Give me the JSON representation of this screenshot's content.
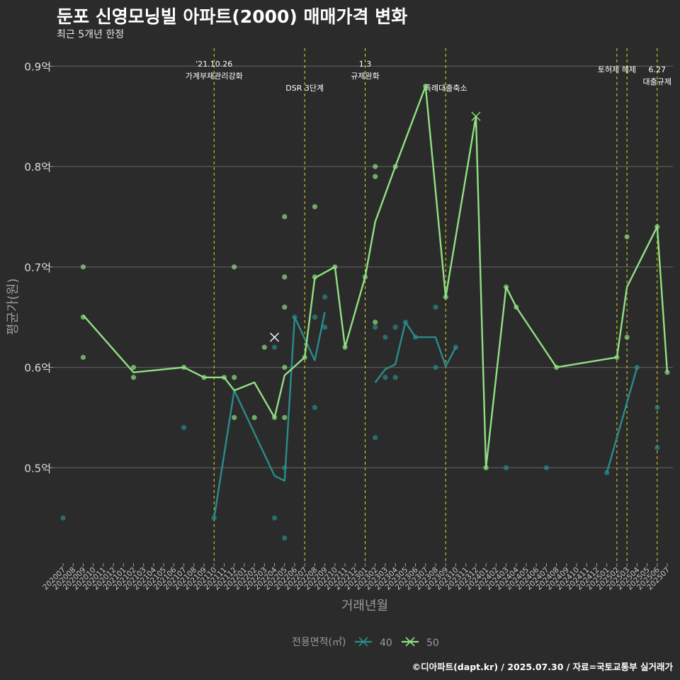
{
  "title": "둔포 신영모닝빌 아파트(2000) 매매가격 변화",
  "subtitle": "최근 5개년 한정",
  "caption": "©디아파트(dapt.kr) / 2025.07.30 / 자료=국토교통부 실거래가",
  "colors": {
    "background": "#2b2b2b",
    "grid": "#5a5a5a",
    "event_line": "#e0e020",
    "series_40": "#2a8c8a",
    "series_50": "#90e082",
    "axis_text": "#9a9a9a"
  },
  "chart_data": {
    "type": "line",
    "xlabel": "거래년월",
    "ylabel": "평균가(원)",
    "y_ticks": [
      0.5,
      0.6,
      0.7,
      0.8,
      0.9
    ],
    "y_tick_labels": [
      "0.5억",
      "0.6억",
      "0.7억",
      "0.8억",
      "0.9억"
    ],
    "ylim": [
      0.405,
      0.92
    ],
    "x_categories": [
      "202007",
      "202008",
      "202009",
      "202010",
      "202011",
      "202012",
      "202101",
      "202102",
      "202103",
      "202104",
      "202105",
      "202106",
      "202107",
      "202108",
      "202109",
      "202110",
      "202111",
      "202112",
      "202201",
      "202202",
      "202203",
      "202204",
      "202205",
      "202206",
      "202207",
      "202208",
      "202209",
      "202210",
      "202211",
      "202212",
      "202301",
      "202302",
      "202303",
      "202304",
      "202305",
      "202306",
      "202307",
      "202308",
      "202309",
      "202310",
      "202311",
      "202312",
      "202401",
      "202402",
      "202403",
      "202404",
      "202405",
      "202406",
      "202407",
      "202408",
      "202409",
      "202410",
      "202411",
      "202412",
      "202501",
      "202502",
      "202503",
      "202504",
      "202505",
      "202506",
      "202507"
    ],
    "legend": {
      "title": "전용면적(㎡)",
      "position": "bottom",
      "items": [
        {
          "label": "40",
          "series": "40"
        },
        {
          "label": "50",
          "series": "50"
        }
      ]
    },
    "events": [
      {
        "x": "202110",
        "label_lines": [
          "'21.10.26",
          "가계부채관리강화"
        ],
        "row": 0
      },
      {
        "x": "202207",
        "label_lines": [
          "DSR 3단계"
        ],
        "row": 2
      },
      {
        "x": "202301",
        "label_lines": [
          "1.3",
          "규제완화"
        ],
        "row": 0
      },
      {
        "x": "202309",
        "label_lines": [
          "특례대출축소"
        ],
        "row": 2
      },
      {
        "x": "202502",
        "label_lines": [
          "토허제 해제"
        ],
        "row": 1
      },
      {
        "x": "202503",
        "label_lines": [],
        "row": 1
      },
      {
        "x": "202506",
        "label_lines": [
          "6.27",
          "대출규제"
        ],
        "row": 1
      }
    ],
    "series": [
      {
        "name": "40",
        "line": [
          [
            "202110",
            0.45
          ],
          [
            "202112",
            0.577
          ],
          [
            "202204",
            0.492
          ],
          [
            "202205",
            0.487
          ],
          [
            "202206",
            0.65
          ],
          [
            "202208",
            0.607
          ],
          [
            "202209",
            0.655
          ],
          null,
          [
            "202302",
            0.585
          ],
          [
            "202303",
            0.598
          ],
          [
            "202304",
            0.603
          ],
          [
            "202305",
            0.645
          ],
          [
            "202306",
            0.63
          ],
          [
            "202307",
            0.63
          ],
          [
            "202308",
            0.63
          ],
          [
            "202309",
            0.601
          ],
          [
            "202310",
            0.62
          ],
          null,
          [
            "202501",
            0.495
          ],
          [
            "202504",
            0.6
          ]
        ],
        "points": [
          [
            "202007",
            0.45
          ],
          [
            "202107",
            0.54
          ],
          [
            "202110",
            0.45
          ],
          [
            "202204",
            0.62
          ],
          [
            "202204",
            0.45
          ],
          [
            "202205",
            0.5
          ],
          [
            "202205",
            0.43
          ],
          [
            "202206",
            0.65
          ],
          [
            "202208",
            0.56
          ],
          [
            "202208",
            0.65
          ],
          [
            "202209",
            0.64
          ],
          [
            "202209",
            0.67
          ],
          [
            "202302",
            0.53
          ],
          [
            "202302",
            0.64
          ],
          [
            "202303",
            0.59
          ],
          [
            "202303",
            0.63
          ],
          [
            "202304",
            0.59
          ],
          [
            "202304",
            0.64
          ],
          [
            "202305",
            0.645
          ],
          [
            "202306",
            0.63
          ],
          [
            "202308",
            0.66
          ],
          [
            "202308",
            0.6
          ],
          [
            "202310",
            0.62
          ],
          [
            "202403",
            0.5
          ],
          [
            "202407",
            0.5
          ],
          [
            "202501",
            0.495
          ],
          [
            "202504",
            0.6
          ],
          [
            "202506",
            0.56
          ],
          [
            "202506",
            0.52
          ]
        ],
        "x_marks": [
          [
            "202204",
            0.63
          ]
        ]
      },
      {
        "name": "50",
        "line": [
          [
            "202009",
            0.652
          ],
          [
            "202102",
            0.595
          ],
          [
            "202107",
            0.6
          ],
          [
            "202109",
            0.59
          ],
          [
            "202111",
            0.59
          ],
          [
            "202112",
            0.577
          ],
          [
            "202202",
            0.585
          ],
          [
            "202204",
            0.55
          ],
          [
            "202205",
            0.592
          ],
          [
            "202207",
            0.61
          ],
          [
            "202208",
            0.689
          ],
          [
            "202210",
            0.7
          ],
          [
            "202211",
            0.62
          ],
          [
            "202301",
            0.69
          ],
          [
            "202302",
            0.745
          ],
          [
            "202304",
            0.8
          ],
          [
            "202307",
            0.88
          ],
          [
            "202309",
            0.67
          ],
          [
            "202312",
            0.85
          ],
          [
            "202401",
            0.5
          ],
          [
            "202403",
            0.68
          ],
          [
            "202404",
            0.66
          ],
          [
            "202408",
            0.6
          ],
          [
            "202502",
            0.61
          ],
          [
            "202503",
            0.68
          ],
          [
            "202506",
            0.74
          ],
          [
            "202507",
            0.595
          ]
        ],
        "points": [
          [
            "202009",
            0.7
          ],
          [
            "202009",
            0.65
          ],
          [
            "202009",
            0.61
          ],
          [
            "202102",
            0.6
          ],
          [
            "202102",
            0.59
          ],
          [
            "202107",
            0.6
          ],
          [
            "202109",
            0.59
          ],
          [
            "202111",
            0.59
          ],
          [
            "202112",
            0.7
          ],
          [
            "202112",
            0.59
          ],
          [
            "202112",
            0.55
          ],
          [
            "202202",
            0.55
          ],
          [
            "202203",
            0.62
          ],
          [
            "202204",
            0.55
          ],
          [
            "202205",
            0.75
          ],
          [
            "202205",
            0.69
          ],
          [
            "202205",
            0.66
          ],
          [
            "202205",
            0.6
          ],
          [
            "202205",
            0.55
          ],
          [
            "202207",
            0.61
          ],
          [
            "202208",
            0.76
          ],
          [
            "202208",
            0.69
          ],
          [
            "202210",
            0.7
          ],
          [
            "202211",
            0.62
          ],
          [
            "202301",
            0.69
          ],
          [
            "202302",
            0.8
          ],
          [
            "202302",
            0.79
          ],
          [
            "202302",
            0.645
          ],
          [
            "202304",
            0.8
          ],
          [
            "202307",
            0.88
          ],
          [
            "202309",
            0.67
          ],
          [
            "202401",
            0.5
          ],
          [
            "202403",
            0.68
          ],
          [
            "202404",
            0.66
          ],
          [
            "202408",
            0.6
          ],
          [
            "202502",
            0.61
          ],
          [
            "202503",
            0.73
          ],
          [
            "202503",
            0.63
          ],
          [
            "202506",
            0.74
          ],
          [
            "202507",
            0.595
          ]
        ],
        "x_marks": [
          [
            "202312",
            0.85
          ]
        ]
      }
    ]
  }
}
